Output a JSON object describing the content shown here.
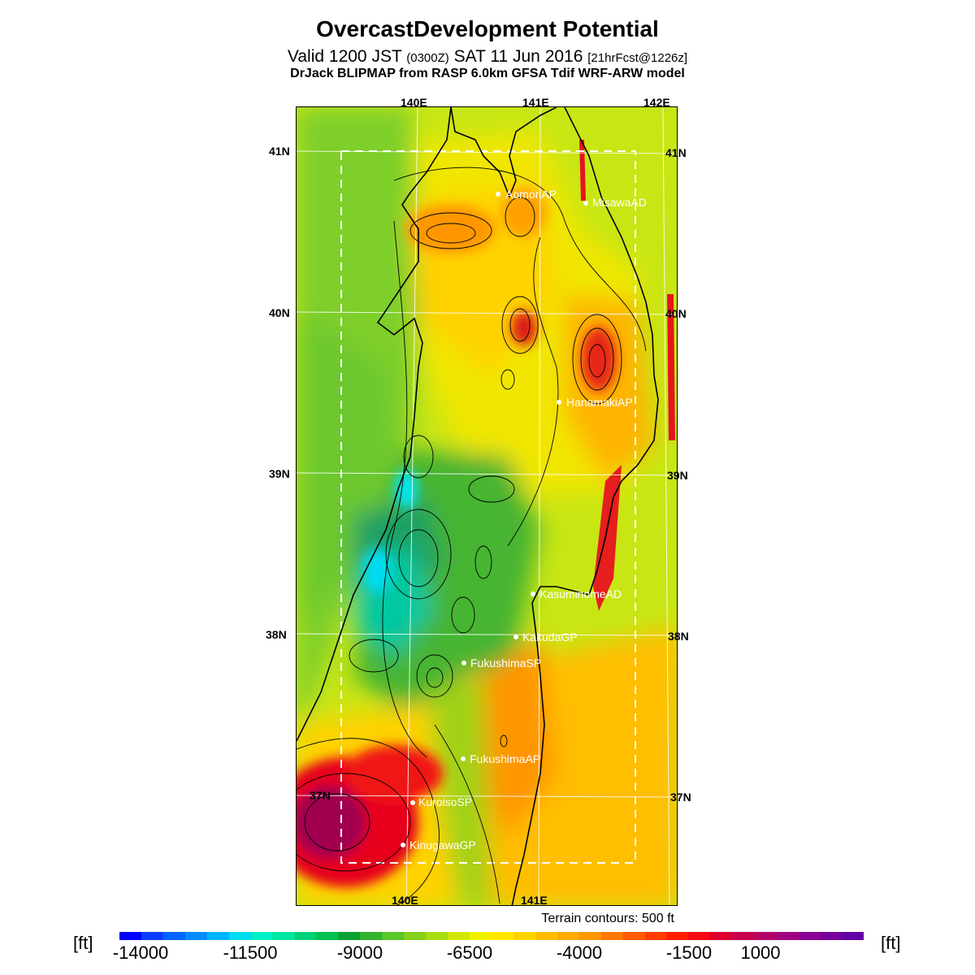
{
  "header": {
    "title": "OvercastDevelopment Potential",
    "valid_prefix": "Valid 1200 JST",
    "valid_utc": "(0300Z)",
    "valid_date": "SAT 11 Jun 2016",
    "forecast_tag": "[21hrFcst@1226z]",
    "model_line": "DrJack BLIPMAP from RASP 6.0km GFSA Tdif WRF-ARW model"
  },
  "map": {
    "lon_labels_top": [
      "140E",
      "141E",
      "142E"
    ],
    "lon_labels_bottom": [
      "140E",
      "141E"
    ],
    "lat_labels": [
      "41N",
      "40N",
      "39N",
      "38N",
      "37N"
    ],
    "stations": [
      {
        "name": "AomoriAP"
      },
      {
        "name": "MisawaAD"
      },
      {
        "name": "HanamakiAP"
      },
      {
        "name": "KasuminomeAD"
      },
      {
        "name": "KakudaGP"
      },
      {
        "name": "FukushimaSP"
      },
      {
        "name": "FukushimaAP"
      },
      {
        "name": "KuroisoSP"
      },
      {
        "name": "KinugawaGP"
      }
    ],
    "terrain_note": "Terrain contours: 500 ft"
  },
  "colorbar": {
    "unit_left": "[ft]",
    "unit_right": "[ft]",
    "tick_labels": [
      "-14000",
      "-11500",
      "-9000",
      "-6500",
      "-4000",
      "-1500",
      "1000"
    ],
    "colors": [
      "#0000ff",
      "#0a3cff",
      "#0064ff",
      "#008cff",
      "#00b4ff",
      "#00dcf0",
      "#00f0c8",
      "#00e6a0",
      "#00d278",
      "#00c050",
      "#0aa032",
      "#32b432",
      "#5ac828",
      "#82d21e",
      "#aadc14",
      "#d2e60a",
      "#f0f000",
      "#ffe600",
      "#ffd200",
      "#ffbe00",
      "#ffaa00",
      "#ff9600",
      "#ff7800",
      "#ff5a00",
      "#ff3c00",
      "#ff1e00",
      "#f00a14",
      "#dc0032",
      "#c8004b",
      "#b40064",
      "#a0007d",
      "#8c0096",
      "#7800a0",
      "#6400a8"
    ]
  }
}
